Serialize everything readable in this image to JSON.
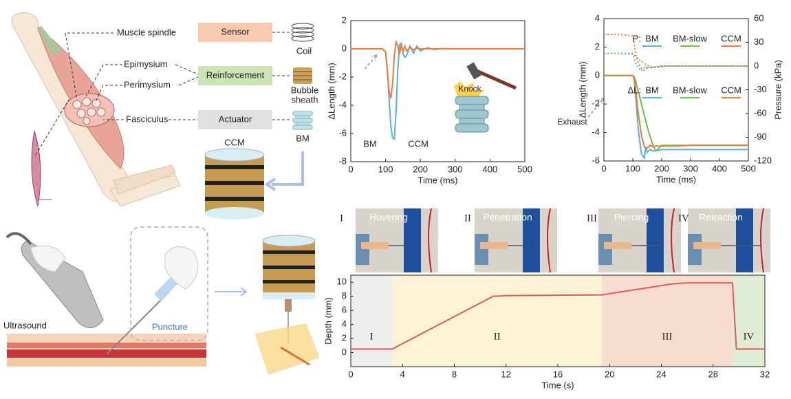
{
  "illustration": {
    "muscle_spindle": "Muscle spindle",
    "epimysium": "Epimysium",
    "perimysium": "Perimysium",
    "fasciculus": "Fasciculus",
    "sensor": "Sensor",
    "reinforcement": "Reinforcement",
    "actuator": "Actuator",
    "coil": "Coil",
    "bubble_sheath": [
      "Bubble",
      "sheath"
    ],
    "bm": "BM",
    "ccm": "CCM",
    "ultrasound": "Ultrasound",
    "puncture": "Puncture"
  },
  "photos": [
    {
      "numeral": "I",
      "label": "Hovering"
    },
    {
      "numeral": "II",
      "label": "Penetration"
    },
    {
      "numeral": "III",
      "label": "Piercing"
    },
    {
      "numeral": "IV",
      "label": "Retraction"
    }
  ],
  "chart_data": [
    {
      "type": "line",
      "xlabel": "Time (ms)",
      "ylabel": "ΔLength (mm)",
      "xlim": [
        0,
        500
      ],
      "ylim": [
        -8,
        2
      ],
      "xticks": [
        0,
        100,
        200,
        300,
        400,
        500
      ],
      "yticks": [
        -8,
        -6,
        -4,
        -2,
        0,
        2
      ],
      "annotations": [
        "Knock"
      ],
      "x": [
        0,
        50,
        90,
        100,
        105,
        110,
        115,
        120,
        125,
        130,
        135,
        140,
        145,
        150,
        155,
        160,
        170,
        180,
        190,
        200,
        220,
        240,
        260,
        300,
        400,
        500
      ],
      "series": [
        {
          "name": "BM",
          "color": "#5aaee0",
          "values": [
            0,
            0,
            0,
            -0.2,
            -1.5,
            -3.5,
            -5.5,
            -6.3,
            -6.4,
            -4.5,
            -1.5,
            0.3,
            0.4,
            -0.3,
            -0.6,
            -0.5,
            0.2,
            -0.3,
            0.2,
            -0.15,
            0.08,
            -0.05,
            0.02,
            0,
            0,
            0
          ]
        },
        {
          "name": "CCM",
          "color": "#f07a3c",
          "values": [
            0,
            0,
            0,
            -0.2,
            -1.5,
            -3,
            -3.5,
            -2.5,
            -0.5,
            0.5,
            0.2,
            -0.4,
            0.3,
            -0.2,
            0.2,
            -0.15,
            0.1,
            -0.05,
            0.03,
            0,
            0,
            0,
            0,
            0,
            0,
            0
          ]
        }
      ]
    },
    {
      "type": "line",
      "xlabel": "Time (ms)",
      "ylabel": "ΔLength (mm)",
      "y2label": "Pressure (kPa)",
      "xlim": [
        0,
        500
      ],
      "ylim": [
        -6,
        4
      ],
      "y2lim": [
        -120,
        60
      ],
      "xticks": [
        0,
        100,
        200,
        300,
        400,
        500
      ],
      "yticks": [
        -6,
        -4,
        -2,
        0,
        2,
        4
      ],
      "y2ticks": [
        -120,
        -90,
        -60,
        -30,
        0,
        30,
        60
      ],
      "annotations": [
        "Exhaust"
      ],
      "legend_prefixes": {
        "y2": "P:",
        "y": "ΔL:"
      },
      "x": [
        0,
        50,
        100,
        105,
        110,
        120,
        130,
        140,
        145,
        150,
        160,
        170,
        180,
        190,
        200,
        220,
        250,
        300,
        400,
        500
      ],
      "series": [
        {
          "name": "BM",
          "color": "#5aaee0",
          "linestyle": "dotted",
          "axis": "y2",
          "values": [
            16,
            16,
            15,
            10,
            4,
            -3,
            -6,
            -2,
            0,
            -3,
            -1,
            -2,
            -1,
            -1,
            -1,
            0,
            0,
            0,
            0,
            0
          ]
        },
        {
          "name": "BM-slow",
          "color": "#6cc04a",
          "linestyle": "dotted",
          "axis": "y2",
          "values": [
            16,
            16,
            16,
            14,
            12,
            9,
            6,
            3,
            2,
            1,
            -1,
            -1,
            -2,
            -1,
            0,
            0,
            0,
            0,
            0,
            0
          ]
        },
        {
          "name": "CCM",
          "color": "#f07a3c",
          "linestyle": "dotted",
          "axis": "y2",
          "values": [
            40,
            40,
            38,
            28,
            15,
            3,
            -3,
            -5,
            -4,
            -3,
            -2,
            -1,
            -1,
            0,
            0,
            0,
            0,
            0,
            0,
            0
          ]
        },
        {
          "name": "BM",
          "color": "#5aaee0",
          "linestyle": "solid",
          "axis": "y",
          "values": [
            0,
            0,
            0,
            -0.3,
            -1.5,
            -4,
            -5.5,
            -5.8,
            -5,
            -5.4,
            -5.2,
            -5.3,
            -5.25,
            -5.25,
            -5.2,
            -5.2,
            -5.2,
            -5.2,
            -5.2,
            -5.2
          ]
        },
        {
          "name": "BM-slow",
          "color": "#6cc04a",
          "linestyle": "solid",
          "axis": "y",
          "values": [
            0,
            0,
            0,
            -0.1,
            -0.4,
            -1.2,
            -2,
            -2.8,
            -3.2,
            -3.6,
            -4.3,
            -4.9,
            -5.3,
            -5.1,
            -4.9,
            -4.9,
            -4.9,
            -4.9,
            -4.9,
            -4.9
          ]
        },
        {
          "name": "CCM",
          "color": "#f07a3c",
          "linestyle": "solid",
          "axis": "y",
          "values": [
            0,
            0,
            0,
            -0.2,
            -1,
            -2.8,
            -4.2,
            -5,
            -5.1,
            -5.1,
            -4.9,
            -5,
            -4.95,
            -4.95,
            -4.95,
            -4.95,
            -4.95,
            -4.9,
            -4.9,
            -4.9
          ]
        }
      ]
    },
    {
      "type": "line",
      "xlabel": "Time (s)",
      "ylabel": "Depth (mm)",
      "xlim": [
        0,
        32
      ],
      "ylim": [
        -2,
        11
      ],
      "xticks": [
        0,
        4,
        8,
        12,
        16,
        20,
        24,
        28,
        32
      ],
      "yticks": [
        0,
        2,
        4,
        6,
        8,
        10
      ],
      "color": "#e05a5a",
      "regions": [
        {
          "start": 0,
          "end": 3.2,
          "label": "I",
          "color": "#eeeeee"
        },
        {
          "start": 3.2,
          "end": 19.4,
          "label": "II",
          "color": "#fdf2d6"
        },
        {
          "start": 19.4,
          "end": 29.5,
          "label": "III",
          "color": "#f8dccf"
        },
        {
          "start": 29.5,
          "end": 32,
          "label": "IV",
          "color": "#e1ecd6"
        }
      ],
      "x": [
        0,
        3.2,
        11,
        12,
        19.4,
        25,
        26,
        29.5,
        29.8,
        32
      ],
      "values": [
        0.5,
        0.5,
        8,
        8.1,
        8.2,
        9.8,
        9.9,
        9.9,
        0.5,
        0.5
      ]
    }
  ]
}
